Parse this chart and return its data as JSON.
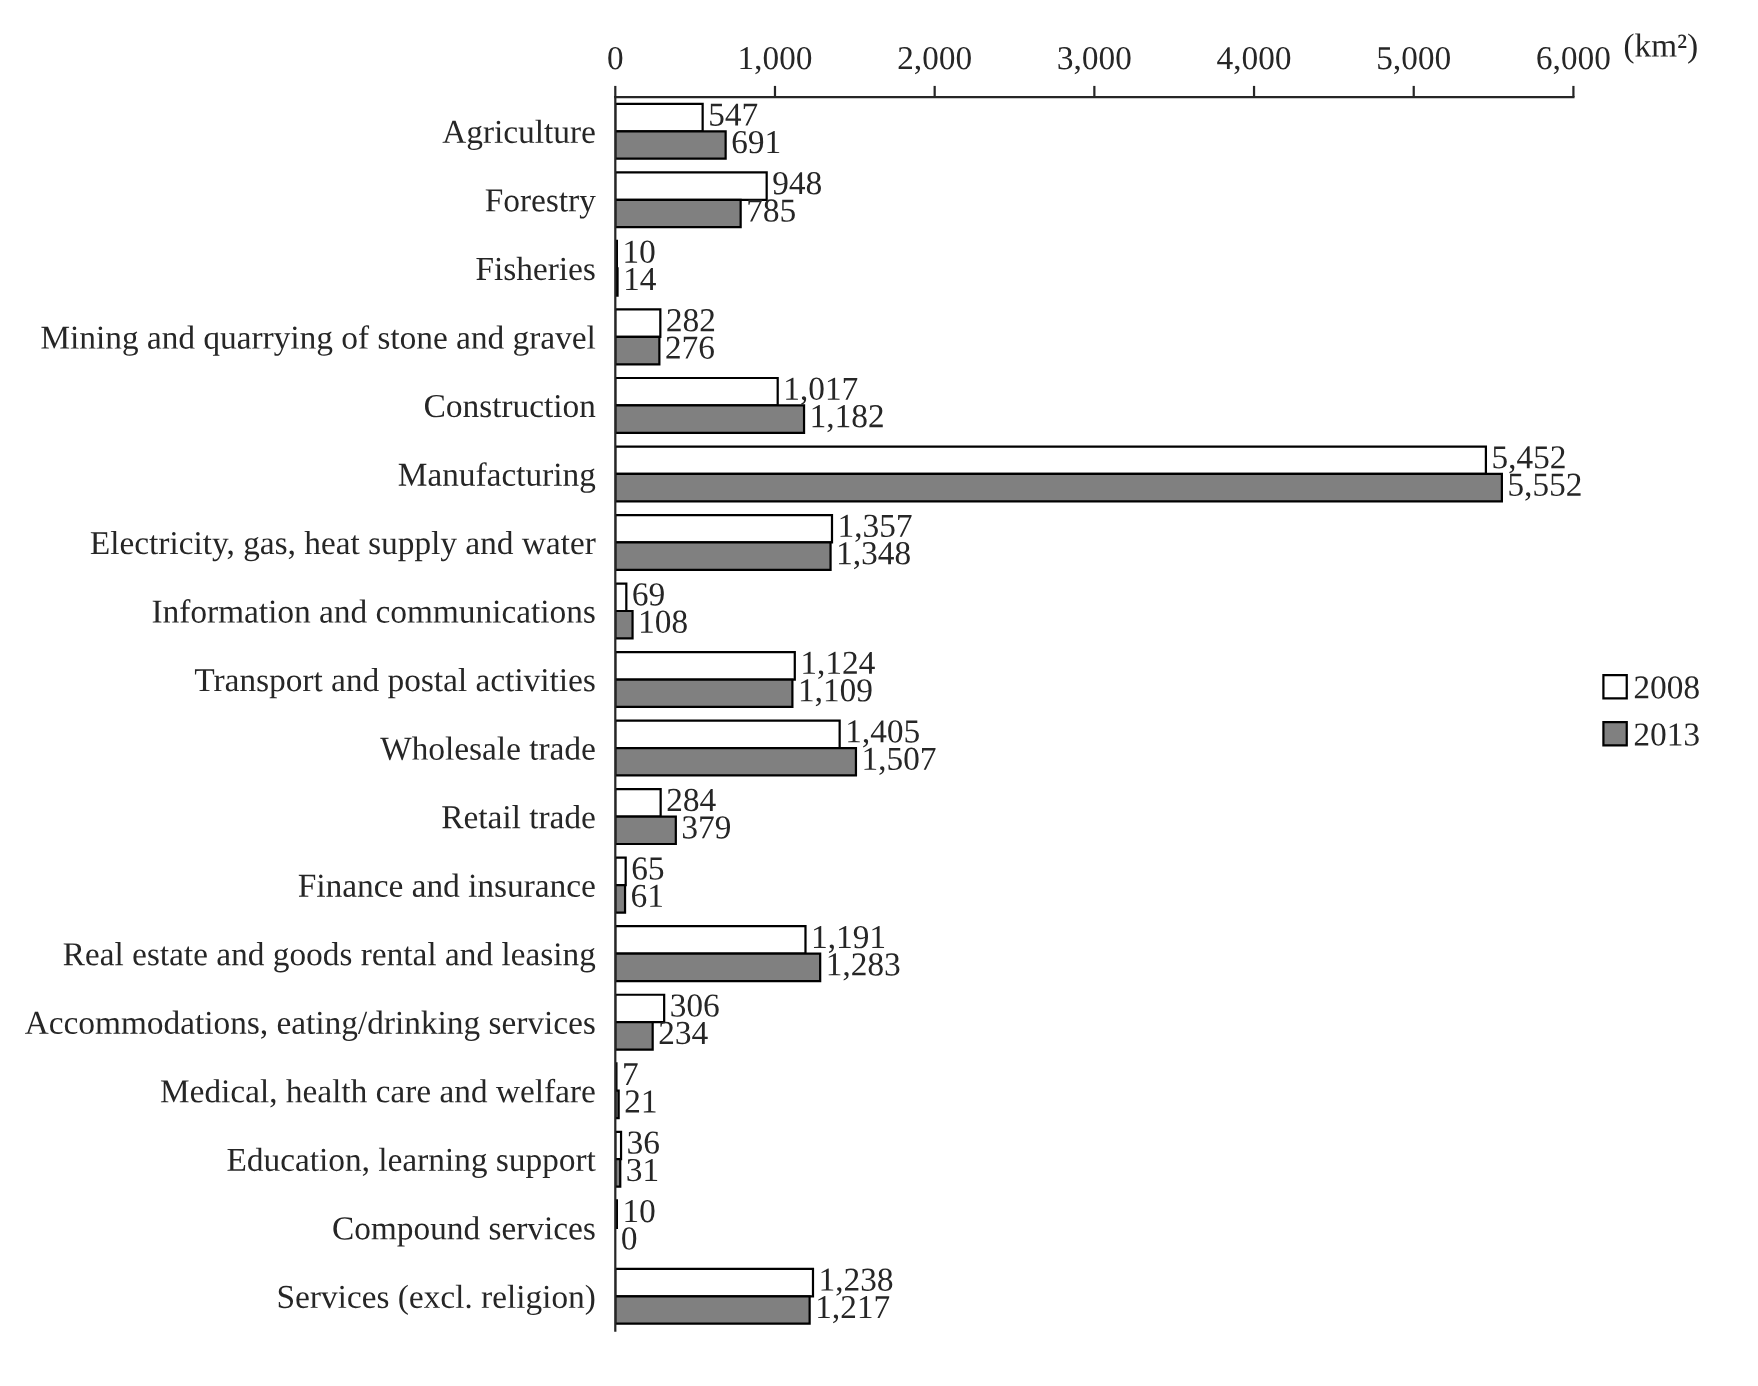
{
  "chart_data": {
    "type": "bar",
    "orientation": "horizontal",
    "xlabel": "(km²)",
    "legend": "right",
    "categories": [
      "Agriculture",
      "Forestry",
      "Fisheries",
      "Mining and quarrying of stone and gravel",
      "Construction",
      "Manufacturing",
      "Electricity, gas, heat supply and water",
      "Information and communications",
      "Transport and postal activities",
      "Wholesale trade",
      "Retail trade",
      "Finance and insurance",
      "Real estate and goods rental and leasing",
      "Accommodations, eating/drinking services",
      "Medical, health care and welfare",
      "Education, learning support",
      "Compound services",
      "Services (excl. religion)"
    ],
    "xlim": [
      0,
      6000
    ],
    "xticks": [
      0,
      {
        "value": 1000,
        "label": "1,000"
      },
      {
        "value": 2000,
        "label": "2,000"
      },
      {
        "value": 3000,
        "label": "3,000"
      },
      {
        "value": 4000,
        "label": "4,000"
      },
      {
        "value": 5000,
        "label": "5,000"
      },
      {
        "value": 6000,
        "label": "6,000"
      }
    ],
    "series": [
      {
        "name": "2008",
        "color": "#ffffff",
        "values": [
          547,
          948,
          10,
          282,
          1017,
          5452,
          1357,
          69,
          1124,
          1405,
          284,
          65,
          1191,
          306,
          7,
          36,
          10,
          1238
        ],
        "value_labels": [
          "547",
          "948",
          "10",
          "282",
          "1,017",
          "5,452",
          "1,357",
          "69",
          "1,124",
          "1,405",
          "284",
          "65",
          "1,191",
          "306",
          "7",
          "36",
          "10",
          "1,238"
        ]
      },
      {
        "name": "2013",
        "color": "#808080",
        "values": [
          691,
          785,
          14,
          276,
          1182,
          5552,
          1348,
          108,
          1109,
          1507,
          379,
          61,
          1283,
          234,
          21,
          31,
          0,
          1217
        ],
        "value_labels": [
          "691",
          "785",
          "14",
          "276",
          "1,182",
          "5,552",
          "1,348",
          "108",
          "1,109",
          "1,507",
          "379",
          "61",
          "1,283",
          "234",
          "21",
          "31",
          "0",
          "1,217"
        ]
      }
    ]
  }
}
